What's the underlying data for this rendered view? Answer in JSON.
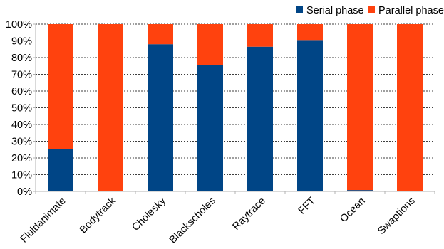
{
  "chart_data": {
    "type": "bar",
    "stacked": true,
    "percent": true,
    "categories": [
      "Fluidanimate",
      "Bodytrack",
      "Cholesky",
      "Blackscholes",
      "Raytrace",
      "FFT",
      "Ocean",
      "Swaptions"
    ],
    "series": [
      {
        "name": "Serial phase",
        "color": "#004586",
        "values": [
          25.5,
          0.3,
          88,
          75.5,
          86.5,
          90.5,
          0.8,
          0.3
        ]
      },
      {
        "name": "Parallel phase",
        "color": "#ff420e",
        "values": [
          74.5,
          99.7,
          12,
          24.5,
          13.5,
          9.5,
          99.2,
          99.7
        ]
      }
    ],
    "ylim": [
      0,
      100
    ],
    "yticks": [
      "0%",
      "10%",
      "20%",
      "30%",
      "40%",
      "50%",
      "60%",
      "70%",
      "80%",
      "90%",
      "100%"
    ],
    "grid": true,
    "legend": "top-right"
  }
}
